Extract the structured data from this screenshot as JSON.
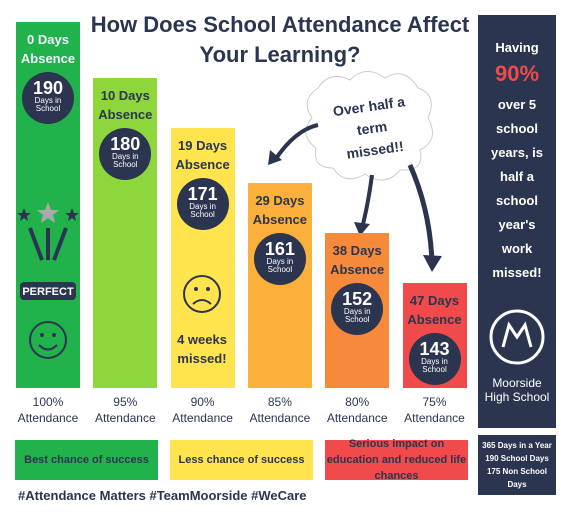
{
  "chart_data": {
    "type": "bar",
    "title": "How Does School Attendance Affect Your Learning?",
    "categories": [
      "100% Attendance",
      "95% Attendance",
      "90% Attendance",
      "85% Attendance",
      "80% Attendance",
      "75% Attendance"
    ],
    "bar_labels": [
      "0 Days Absence",
      "10 Days Absence",
      "19 Days Absence",
      "29 Days Absence",
      "38 Days Absence",
      "47 Days Absence"
    ],
    "values": [
      190,
      180,
      171,
      161,
      152,
      143
    ],
    "value_unit": "Days in School",
    "colors": [
      "#22b24c",
      "#8dd63b",
      "#ffe44d",
      "#fbb03b",
      "#f7893b",
      "#f04a4a"
    ],
    "annotations": {
      "perfect": "PERFECT",
      "weeks": "4 weeks missed!",
      "callout": "Over half a term missed!!"
    }
  },
  "legend": [
    {
      "text": "Best chance of success",
      "color": "#22b24c"
    },
    {
      "text": "Less chance of success",
      "color": "#ffe44d"
    },
    {
      "text": "Serious impact on education and reduced life chances",
      "color": "#f04a4a"
    }
  ],
  "sidebar": {
    "lines": [
      "Having",
      "90%",
      "over 5 school years, is half a school year's work missed!"
    ]
  },
  "school": {
    "name": "Moorside High School"
  },
  "facts": [
    "365 Days in a Year",
    "190 School Days",
    "175 Non School Days"
  ],
  "footer": "#Attendance Matters #TeamMoorside #WeCare"
}
